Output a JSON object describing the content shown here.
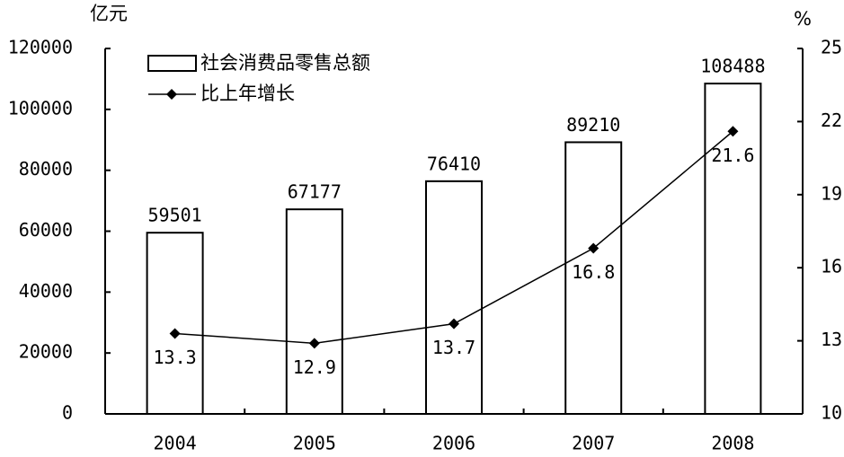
{
  "chart_data": {
    "type": "bar",
    "y_label": "亿元",
    "y2_label": "%",
    "categories": [
      "2004",
      "2005",
      "2006",
      "2007",
      "2008"
    ],
    "series": [
      {
        "name": "社会消费品零售总额",
        "type": "bar",
        "color": "#ffffff",
        "values": [
          59501,
          67177,
          76410,
          89210,
          108488
        ]
      },
      {
        "name": "比上年增长",
        "type": "line",
        "axis": "y2",
        "color": "#000000",
        "values": [
          13.3,
          12.9,
          13.7,
          16.8,
          21.6
        ]
      }
    ],
    "ylim": [
      0,
      120000
    ],
    "yticks": [
      0,
      20000,
      40000,
      60000,
      80000,
      100000,
      120000
    ],
    "y2lim": [
      10,
      25
    ],
    "y2ticks": [
      10,
      13,
      16,
      19,
      22,
      25
    ],
    "grid": false
  }
}
